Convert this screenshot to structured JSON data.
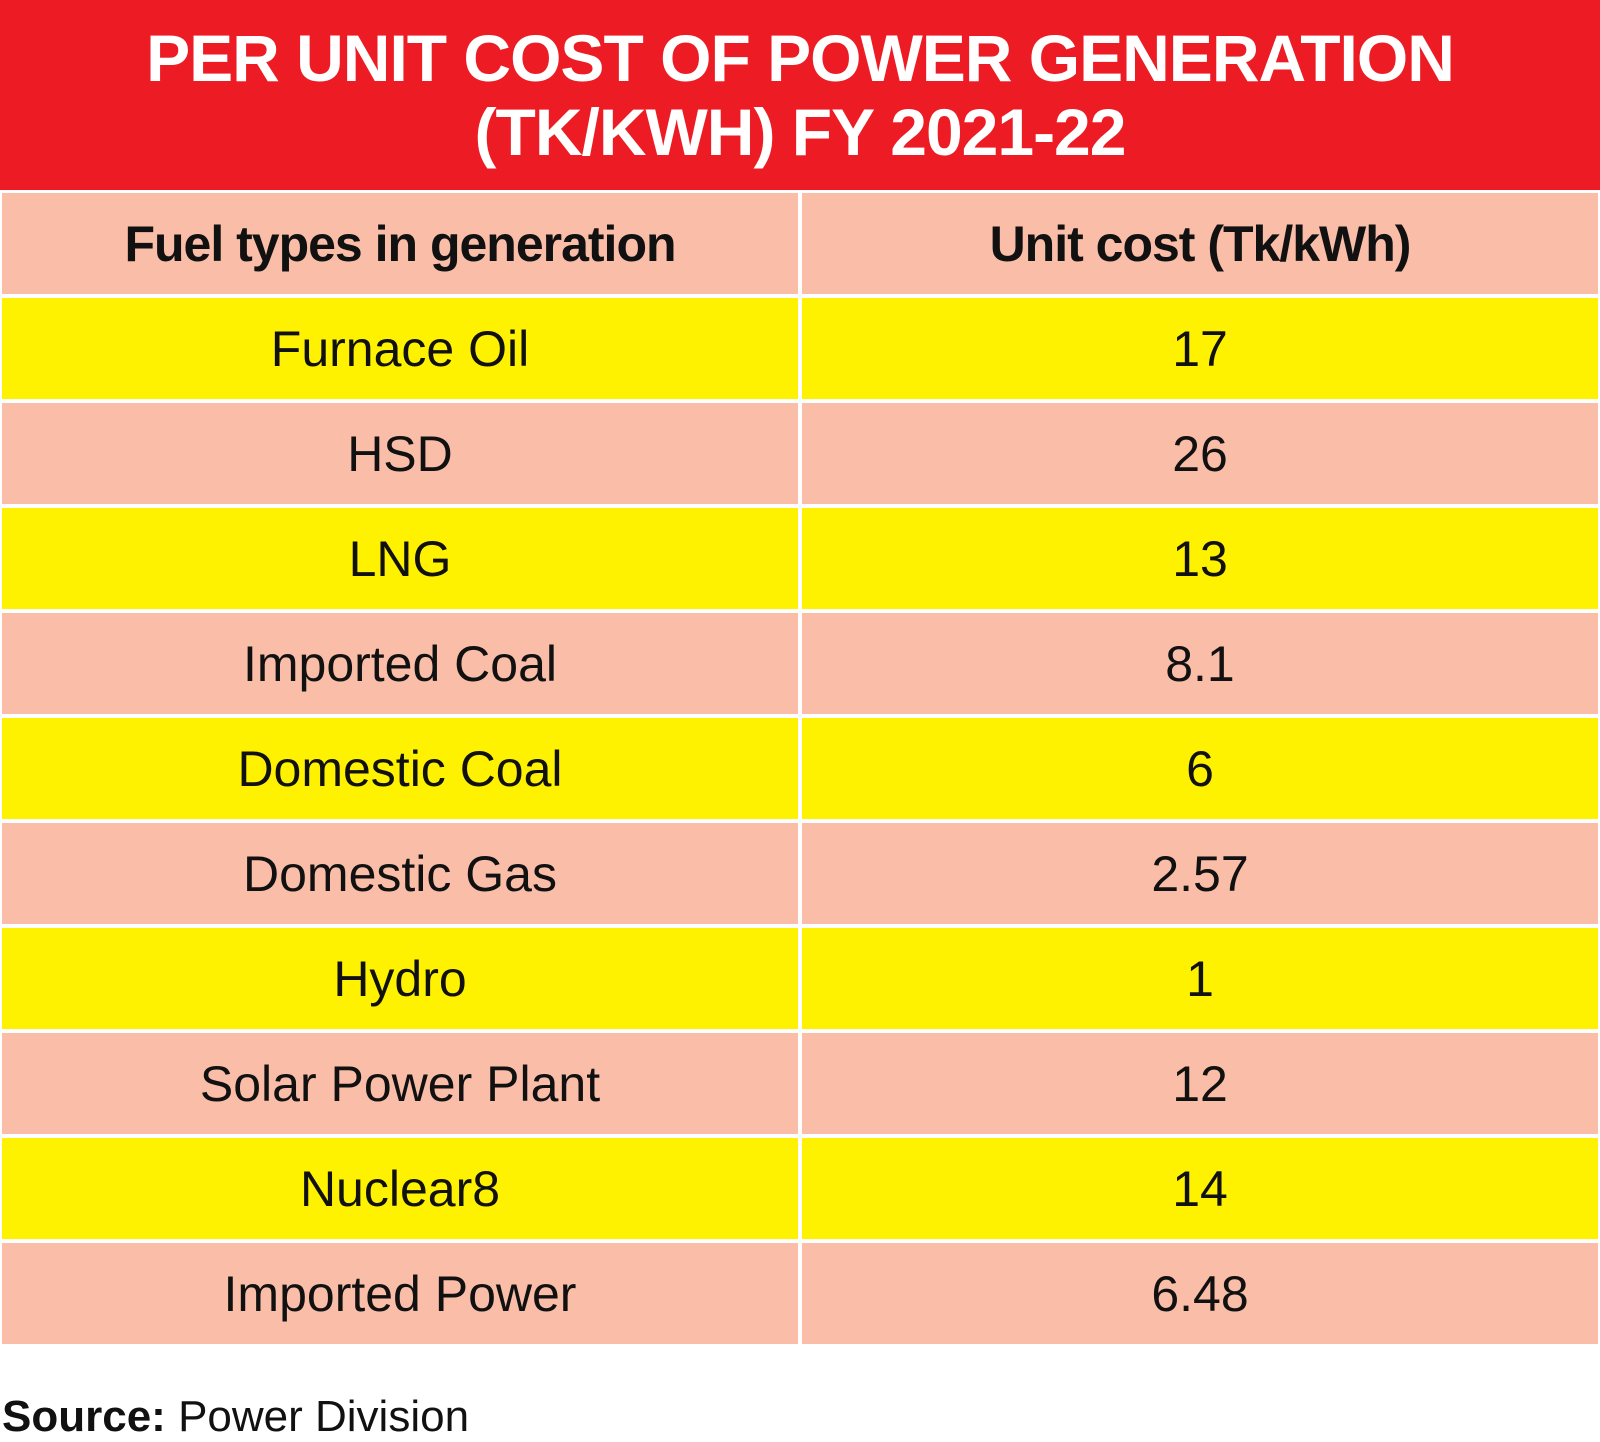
{
  "chart_data": {
    "type": "table",
    "title_line1": "PER UNIT COST OF POWER GENERATION",
    "title_line2": "(TK/KWH) FY 2021-22",
    "columns": [
      "Fuel types in generation",
      "Unit cost (Tk/kWh)"
    ],
    "rows": [
      [
        "Furnace Oil",
        "17"
      ],
      [
        "HSD",
        "26"
      ],
      [
        "LNG",
        "13"
      ],
      [
        "Imported Coal",
        "8.1"
      ],
      [
        "Domestic Coal",
        "6"
      ],
      [
        "Domestic Gas",
        "2.57"
      ],
      [
        "Hydro",
        "1"
      ],
      [
        "Solar Power Plant",
        "12"
      ],
      [
        "Nuclear8",
        "14"
      ],
      [
        "Imported Power",
        "6.48"
      ]
    ],
    "source_label": "Source:",
    "source_value": "Power Division"
  },
  "colors": {
    "title_bg": "#ed1c24",
    "row_pink": "#f9bda8",
    "row_yellow": "#fff200"
  }
}
